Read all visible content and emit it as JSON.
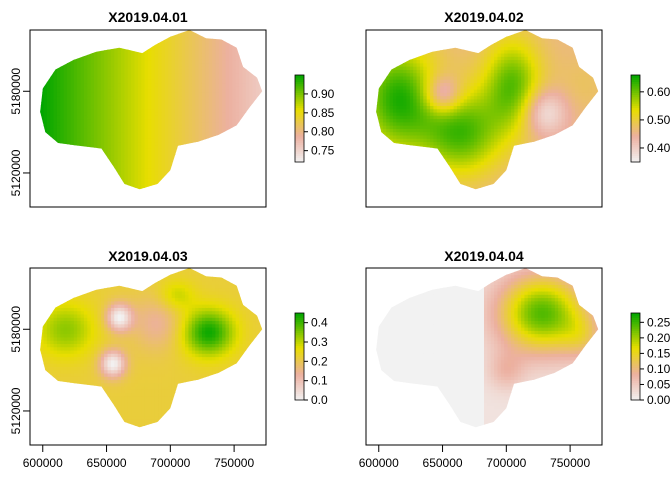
{
  "chart_data": [
    {
      "type": "heatmap",
      "title": "X2019.04.01",
      "xlabel": "",
      "ylabel": "",
      "xlim": [
        590000,
        775000
      ],
      "ylim": [
        5095000,
        5225000
      ],
      "x_ticks": [
        600000,
        650000,
        700000,
        750000
      ],
      "y_ticks": [
        5120000,
        5180000
      ],
      "show_x_axis": false,
      "show_y_axis": true,
      "legend": {
        "position": "right",
        "range": [
          0.72,
          0.95
        ],
        "ticks": [
          0.75,
          0.8,
          0.85,
          0.9
        ],
        "tick_labels": [
          "0.75",
          "0.80",
          "0.85",
          "0.90"
        ]
      },
      "surface": {
        "trend_x": -1.1e-06,
        "base": 0.85,
        "blobs": []
      }
    },
    {
      "type": "heatmap",
      "title": "X2019.04.02",
      "xlabel": "",
      "ylabel": "",
      "xlim": [
        590000,
        775000
      ],
      "ylim": [
        5095000,
        5225000
      ],
      "x_ticks": [
        600000,
        650000,
        700000,
        750000
      ],
      "y_ticks": [
        5120000,
        5180000
      ],
      "show_x_axis": false,
      "show_y_axis": false,
      "legend": {
        "position": "right",
        "range": [
          0.35,
          0.66
        ],
        "ticks": [
          0.4,
          0.5,
          0.6
        ],
        "tick_labels": [
          "0.40",
          "0.50",
          "0.60"
        ]
      },
      "surface": {
        "trend_x": 0,
        "base": 0.46,
        "blobs": [
          {
            "x": 615000,
            "y": 5175000,
            "sx": 22000,
            "sy": 28000,
            "amp": 0.18
          },
          {
            "x": 665000,
            "y": 5150000,
            "sx": 22000,
            "sy": 22000,
            "amp": 0.16
          },
          {
            "x": 705000,
            "y": 5185000,
            "sx": 16000,
            "sy": 24000,
            "amp": 0.15
          },
          {
            "x": 650000,
            "y": 5178000,
            "sx": 10000,
            "sy": 10000,
            "amp": -0.12
          },
          {
            "x": 730000,
            "y": 5165000,
            "sx": 12000,
            "sy": 12000,
            "amp": -0.1
          },
          {
            "x": 760000,
            "y": 5185000,
            "sx": 16000,
            "sy": 16000,
            "amp": 0.02
          }
        ]
      }
    },
    {
      "type": "heatmap",
      "title": "X2019.04.03",
      "xlabel": "",
      "ylabel": "",
      "xlim": [
        590000,
        775000
      ],
      "ylim": [
        5095000,
        5225000
      ],
      "x_ticks": [
        600000,
        650000,
        700000,
        750000
      ],
      "y_ticks": [
        5120000,
        5180000
      ],
      "show_x_axis": true,
      "show_y_axis": true,
      "legend": {
        "position": "right",
        "range": [
          0.0,
          0.45
        ],
        "ticks": [
          0.0,
          0.1,
          0.2,
          0.3,
          0.4
        ],
        "tick_labels": [
          "0.0",
          "0.1",
          "0.2",
          "0.3",
          "0.4"
        ]
      },
      "surface": {
        "trend_x": 0,
        "base": 0.22,
        "blobs": [
          {
            "x": 618000,
            "y": 5180000,
            "sx": 16000,
            "sy": 14000,
            "amp": 0.12
          },
          {
            "x": 730000,
            "y": 5178000,
            "sx": 14000,
            "sy": 12000,
            "amp": 0.22
          },
          {
            "x": 660000,
            "y": 5189000,
            "sx": 7000,
            "sy": 7000,
            "amp": -0.22
          },
          {
            "x": 655000,
            "y": 5155000,
            "sx": 7000,
            "sy": 7000,
            "amp": -0.22
          },
          {
            "x": 690000,
            "y": 5185000,
            "sx": 14000,
            "sy": 14000,
            "amp": -0.08
          },
          {
            "x": 705000,
            "y": 5205000,
            "sx": 10000,
            "sy": 8000,
            "amp": 0.08
          }
        ]
      }
    },
    {
      "type": "heatmap",
      "title": "X2019.04.04",
      "xlabel": "",
      "ylabel": "",
      "xlim": [
        590000,
        775000
      ],
      "ylim": [
        5095000,
        5225000
      ],
      "x_ticks": [
        600000,
        650000,
        700000,
        750000
      ],
      "y_ticks": [
        5120000,
        5180000
      ],
      "show_x_axis": true,
      "show_y_axis": false,
      "legend": {
        "position": "right",
        "range": [
          0.0,
          0.28
        ],
        "ticks": [
          0.0,
          0.05,
          0.1,
          0.15,
          0.2,
          0.25
        ],
        "tick_labels": [
          "0.00",
          "0.05",
          "0.10",
          "0.15",
          "0.20",
          "0.25"
        ]
      },
      "surface": {
        "trend_x": 0,
        "base": 0.02,
        "na_west_of": 683000,
        "blobs": [
          {
            "x": 728000,
            "y": 5192000,
            "sx": 24000,
            "sy": 20000,
            "amp": 0.22
          },
          {
            "x": 760000,
            "y": 5175000,
            "sx": 12000,
            "sy": 12000,
            "amp": 0.06
          },
          {
            "x": 700000,
            "y": 5150000,
            "sx": 10000,
            "sy": 10000,
            "amp": 0.05
          }
        ]
      }
    }
  ]
}
